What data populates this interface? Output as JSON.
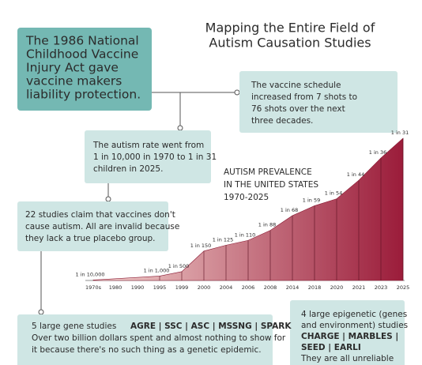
{
  "title": [
    "Mapping the Entire Field of",
    "Autism Causation Studies"
  ],
  "act_box": [
    "The 1986 National",
    "Childhood Vaccine",
    "Injury Act gave",
    "vaccine makers",
    "liability protection."
  ],
  "schedule_box": [
    "The vaccine schedule",
    "increased from 7 shots to",
    "76 shots over the next",
    "three decades."
  ],
  "rate_box": [
    "The autism rate went from",
    "1 in 10,000 in 1970 to 1 in 31",
    "children in 2025."
  ],
  "placebo_box": [
    "22 studies claim that vaccines don't",
    "cause autism. All are invalid because",
    "they lack a true placebo group."
  ],
  "gene_box": {
    "lead": "5 large gene studies",
    "studies": "AGRE | SSC | ASC | MSSNG | SPARK",
    "lines": [
      "Over two billion dollars spent and almost nothing to show for",
      "it because there's no such thing as a genetic epidemic."
    ]
  },
  "epigenetic_box": {
    "lines": [
      "4 large epigenetic (genes",
      "and environment) studies"
    ],
    "studies": [
      "CHARGE | MARBLES |",
      "SEED | EARLI"
    ],
    "tail": "They are all unreliable"
  },
  "chart_data": {
    "type": "area",
    "title": [
      "AUTISM PREVALENCE",
      "IN THE UNITED STATES",
      "1970-2025"
    ],
    "categories": [
      "1970s",
      "1980",
      "1990",
      "1995",
      "1999",
      "2000",
      "2004",
      "2006",
      "2008",
      "2014",
      "2018",
      "2020",
      "2021",
      "2023",
      "2025"
    ],
    "values": [
      10000,
      null,
      null,
      1000,
      500,
      150,
      125,
      110,
      88,
      68,
      59,
      54,
      44,
      36,
      31
    ],
    "value_labels": [
      "1 in 10,000",
      null,
      null,
      "1 in 1,000",
      "1 in 500",
      "1 in 150",
      "1 in 125",
      "1 in 110",
      "1 in 88",
      "1 in 68",
      "1 in 59",
      "1 in 54",
      "1 in 44",
      "1 in 36",
      "1 in 31"
    ],
    "colors": [
      "#f3d3cf",
      "#9b1c3a"
    ]
  }
}
